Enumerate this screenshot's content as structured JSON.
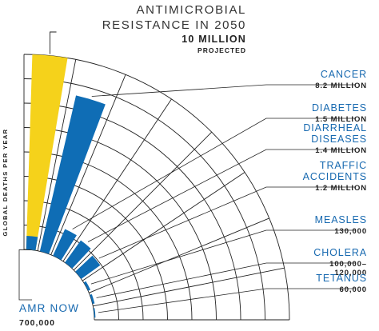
{
  "chart_data": {
    "type": "radial-bar",
    "title_line1": "ANTIMICROBIAL",
    "title_line2": "RESISTANCE IN 2050",
    "headline_value": "10 MILLION",
    "headline_note": "PROJECTED",
    "ylabel": "GLOBAL DEATHS PER YEAR",
    "baseline_label": "AMR NOW",
    "baseline_value_label": "700,000",
    "colors": {
      "amr_2050": "#f5d21b",
      "causes": "#0f6db5",
      "baseline": "#0f6db5",
      "lines": "#222222",
      "value_text": "#1769b0"
    },
    "amr_projected": 10000000,
    "amr_now": 700000,
    "categories": [
      {
        "name_lines": [
          "CANCER"
        ],
        "value_label": "8.2 MILLION",
        "value": 8200000
      },
      {
        "name_lines": [
          "DIABETES"
        ],
        "value_label": "1.5 MILLION",
        "value": 1500000
      },
      {
        "name_lines": [
          "DIARRHEAL",
          "DISEASES"
        ],
        "value_label": "1.4 MILLION",
        "value": 1400000
      },
      {
        "name_lines": [
          "TRAFFIC",
          "ACCIDENTS"
        ],
        "value_label": "1.2 MILLION",
        "value": 1200000
      },
      {
        "name_lines": [
          "MEASLES"
        ],
        "value_label": "130,000",
        "value": 130000
      },
      {
        "name_lines": [
          "CHOLERA"
        ],
        "value_label_lines": [
          "100,000–",
          "120,000"
        ],
        "value": 110000
      },
      {
        "name_lines": [
          "TETANUS"
        ],
        "value_label": "60,000",
        "value": 60000
      }
    ]
  }
}
